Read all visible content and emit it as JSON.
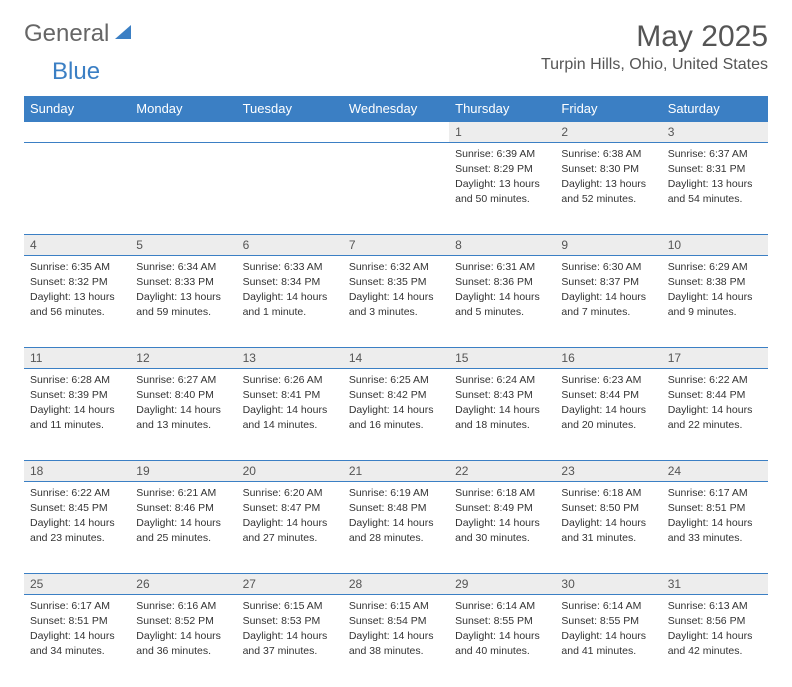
{
  "logo": {
    "general": "General",
    "blue": "Blue"
  },
  "title": "May 2025",
  "location": "Turpin Hills, Ohio, United States",
  "colors": {
    "header_bg": "#3b7fc4",
    "header_fg": "#ffffff",
    "daynum_bg": "#ededed",
    "text": "#333333",
    "rule": "#3b7fc4"
  },
  "day_names": [
    "Sunday",
    "Monday",
    "Tuesday",
    "Wednesday",
    "Thursday",
    "Friday",
    "Saturday"
  ],
  "weeks": [
    [
      null,
      null,
      null,
      null,
      {
        "n": "1",
        "sunrise": "6:39 AM",
        "sunset": "8:29 PM",
        "daylight": "13 hours and 50 minutes."
      },
      {
        "n": "2",
        "sunrise": "6:38 AM",
        "sunset": "8:30 PM",
        "daylight": "13 hours and 52 minutes."
      },
      {
        "n": "3",
        "sunrise": "6:37 AM",
        "sunset": "8:31 PM",
        "daylight": "13 hours and 54 minutes."
      }
    ],
    [
      {
        "n": "4",
        "sunrise": "6:35 AM",
        "sunset": "8:32 PM",
        "daylight": "13 hours and 56 minutes."
      },
      {
        "n": "5",
        "sunrise": "6:34 AM",
        "sunset": "8:33 PM",
        "daylight": "13 hours and 59 minutes."
      },
      {
        "n": "6",
        "sunrise": "6:33 AM",
        "sunset": "8:34 PM",
        "daylight": "14 hours and 1 minute."
      },
      {
        "n": "7",
        "sunrise": "6:32 AM",
        "sunset": "8:35 PM",
        "daylight": "14 hours and 3 minutes."
      },
      {
        "n": "8",
        "sunrise": "6:31 AM",
        "sunset": "8:36 PM",
        "daylight": "14 hours and 5 minutes."
      },
      {
        "n": "9",
        "sunrise": "6:30 AM",
        "sunset": "8:37 PM",
        "daylight": "14 hours and 7 minutes."
      },
      {
        "n": "10",
        "sunrise": "6:29 AM",
        "sunset": "8:38 PM",
        "daylight": "14 hours and 9 minutes."
      }
    ],
    [
      {
        "n": "11",
        "sunrise": "6:28 AM",
        "sunset": "8:39 PM",
        "daylight": "14 hours and 11 minutes."
      },
      {
        "n": "12",
        "sunrise": "6:27 AM",
        "sunset": "8:40 PM",
        "daylight": "14 hours and 13 minutes."
      },
      {
        "n": "13",
        "sunrise": "6:26 AM",
        "sunset": "8:41 PM",
        "daylight": "14 hours and 14 minutes."
      },
      {
        "n": "14",
        "sunrise": "6:25 AM",
        "sunset": "8:42 PM",
        "daylight": "14 hours and 16 minutes."
      },
      {
        "n": "15",
        "sunrise": "6:24 AM",
        "sunset": "8:43 PM",
        "daylight": "14 hours and 18 minutes."
      },
      {
        "n": "16",
        "sunrise": "6:23 AM",
        "sunset": "8:44 PM",
        "daylight": "14 hours and 20 minutes."
      },
      {
        "n": "17",
        "sunrise": "6:22 AM",
        "sunset": "8:44 PM",
        "daylight": "14 hours and 22 minutes."
      }
    ],
    [
      {
        "n": "18",
        "sunrise": "6:22 AM",
        "sunset": "8:45 PM",
        "daylight": "14 hours and 23 minutes."
      },
      {
        "n": "19",
        "sunrise": "6:21 AM",
        "sunset": "8:46 PM",
        "daylight": "14 hours and 25 minutes."
      },
      {
        "n": "20",
        "sunrise": "6:20 AM",
        "sunset": "8:47 PM",
        "daylight": "14 hours and 27 minutes."
      },
      {
        "n": "21",
        "sunrise": "6:19 AM",
        "sunset": "8:48 PM",
        "daylight": "14 hours and 28 minutes."
      },
      {
        "n": "22",
        "sunrise": "6:18 AM",
        "sunset": "8:49 PM",
        "daylight": "14 hours and 30 minutes."
      },
      {
        "n": "23",
        "sunrise": "6:18 AM",
        "sunset": "8:50 PM",
        "daylight": "14 hours and 31 minutes."
      },
      {
        "n": "24",
        "sunrise": "6:17 AM",
        "sunset": "8:51 PM",
        "daylight": "14 hours and 33 minutes."
      }
    ],
    [
      {
        "n": "25",
        "sunrise": "6:17 AM",
        "sunset": "8:51 PM",
        "daylight": "14 hours and 34 minutes."
      },
      {
        "n": "26",
        "sunrise": "6:16 AM",
        "sunset": "8:52 PM",
        "daylight": "14 hours and 36 minutes."
      },
      {
        "n": "27",
        "sunrise": "6:15 AM",
        "sunset": "8:53 PM",
        "daylight": "14 hours and 37 minutes."
      },
      {
        "n": "28",
        "sunrise": "6:15 AM",
        "sunset": "8:54 PM",
        "daylight": "14 hours and 38 minutes."
      },
      {
        "n": "29",
        "sunrise": "6:14 AM",
        "sunset": "8:55 PM",
        "daylight": "14 hours and 40 minutes."
      },
      {
        "n": "30",
        "sunrise": "6:14 AM",
        "sunset": "8:55 PM",
        "daylight": "14 hours and 41 minutes."
      },
      {
        "n": "31",
        "sunrise": "6:13 AM",
        "sunset": "8:56 PM",
        "daylight": "14 hours and 42 minutes."
      }
    ]
  ],
  "labels": {
    "sunrise": "Sunrise:",
    "sunset": "Sunset:",
    "daylight": "Daylight:"
  }
}
